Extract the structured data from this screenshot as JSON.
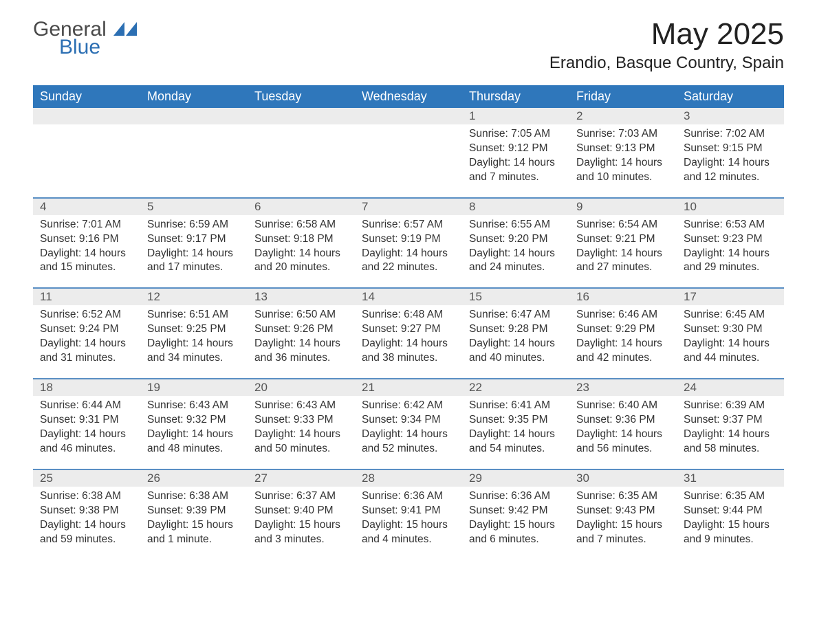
{
  "colors": {
    "header_blue": "#2f77bb",
    "accent_blue": "#2c6fb3",
    "row_header_bg": "#ececec",
    "text": "#333333",
    "title": "#222222",
    "day_number": "#555555",
    "background": "#ffffff",
    "border_blue": "#5a8fc4"
  },
  "typography": {
    "title_fontsize": 44,
    "subtitle_fontsize": 24,
    "weekday_fontsize": 18,
    "daynum_fontsize": 17,
    "body_fontsize": 15.5,
    "font_family": "Segoe UI / Helvetica Neue / Arial"
  },
  "logo": {
    "text_primary": "General",
    "text_secondary": "Blue",
    "mark_color": "#2c6fb3"
  },
  "title": "May 2025",
  "subtitle": "Erandio, Basque Country, Spain",
  "weekdays": [
    "Sunday",
    "Monday",
    "Tuesday",
    "Wednesday",
    "Thursday",
    "Friday",
    "Saturday"
  ],
  "labels": {
    "sunrise": "Sunrise",
    "sunset": "Sunset",
    "daylight": "Daylight"
  },
  "weeks": [
    [
      null,
      null,
      null,
      null,
      {
        "n": "1",
        "sunrise": "7:05 AM",
        "sunset": "9:12 PM",
        "daylight": "14 hours and 7 minutes."
      },
      {
        "n": "2",
        "sunrise": "7:03 AM",
        "sunset": "9:13 PM",
        "daylight": "14 hours and 10 minutes."
      },
      {
        "n": "3",
        "sunrise": "7:02 AM",
        "sunset": "9:15 PM",
        "daylight": "14 hours and 12 minutes."
      }
    ],
    [
      {
        "n": "4",
        "sunrise": "7:01 AM",
        "sunset": "9:16 PM",
        "daylight": "14 hours and 15 minutes."
      },
      {
        "n": "5",
        "sunrise": "6:59 AM",
        "sunset": "9:17 PM",
        "daylight": "14 hours and 17 minutes."
      },
      {
        "n": "6",
        "sunrise": "6:58 AM",
        "sunset": "9:18 PM",
        "daylight": "14 hours and 20 minutes."
      },
      {
        "n": "7",
        "sunrise": "6:57 AM",
        "sunset": "9:19 PM",
        "daylight": "14 hours and 22 minutes."
      },
      {
        "n": "8",
        "sunrise": "6:55 AM",
        "sunset": "9:20 PM",
        "daylight": "14 hours and 24 minutes."
      },
      {
        "n": "9",
        "sunrise": "6:54 AM",
        "sunset": "9:21 PM",
        "daylight": "14 hours and 27 minutes."
      },
      {
        "n": "10",
        "sunrise": "6:53 AM",
        "sunset": "9:23 PM",
        "daylight": "14 hours and 29 minutes."
      }
    ],
    [
      {
        "n": "11",
        "sunrise": "6:52 AM",
        "sunset": "9:24 PM",
        "daylight": "14 hours and 31 minutes."
      },
      {
        "n": "12",
        "sunrise": "6:51 AM",
        "sunset": "9:25 PM",
        "daylight": "14 hours and 34 minutes."
      },
      {
        "n": "13",
        "sunrise": "6:50 AM",
        "sunset": "9:26 PM",
        "daylight": "14 hours and 36 minutes."
      },
      {
        "n": "14",
        "sunrise": "6:48 AM",
        "sunset": "9:27 PM",
        "daylight": "14 hours and 38 minutes."
      },
      {
        "n": "15",
        "sunrise": "6:47 AM",
        "sunset": "9:28 PM",
        "daylight": "14 hours and 40 minutes."
      },
      {
        "n": "16",
        "sunrise": "6:46 AM",
        "sunset": "9:29 PM",
        "daylight": "14 hours and 42 minutes."
      },
      {
        "n": "17",
        "sunrise": "6:45 AM",
        "sunset": "9:30 PM",
        "daylight": "14 hours and 44 minutes."
      }
    ],
    [
      {
        "n": "18",
        "sunrise": "6:44 AM",
        "sunset": "9:31 PM",
        "daylight": "14 hours and 46 minutes."
      },
      {
        "n": "19",
        "sunrise": "6:43 AM",
        "sunset": "9:32 PM",
        "daylight": "14 hours and 48 minutes."
      },
      {
        "n": "20",
        "sunrise": "6:43 AM",
        "sunset": "9:33 PM",
        "daylight": "14 hours and 50 minutes."
      },
      {
        "n": "21",
        "sunrise": "6:42 AM",
        "sunset": "9:34 PM",
        "daylight": "14 hours and 52 minutes."
      },
      {
        "n": "22",
        "sunrise": "6:41 AM",
        "sunset": "9:35 PM",
        "daylight": "14 hours and 54 minutes."
      },
      {
        "n": "23",
        "sunrise": "6:40 AM",
        "sunset": "9:36 PM",
        "daylight": "14 hours and 56 minutes."
      },
      {
        "n": "24",
        "sunrise": "6:39 AM",
        "sunset": "9:37 PM",
        "daylight": "14 hours and 58 minutes."
      }
    ],
    [
      {
        "n": "25",
        "sunrise": "6:38 AM",
        "sunset": "9:38 PM",
        "daylight": "14 hours and 59 minutes."
      },
      {
        "n": "26",
        "sunrise": "6:38 AM",
        "sunset": "9:39 PM",
        "daylight": "15 hours and 1 minute."
      },
      {
        "n": "27",
        "sunrise": "6:37 AM",
        "sunset": "9:40 PM",
        "daylight": "15 hours and 3 minutes."
      },
      {
        "n": "28",
        "sunrise": "6:36 AM",
        "sunset": "9:41 PM",
        "daylight": "15 hours and 4 minutes."
      },
      {
        "n": "29",
        "sunrise": "6:36 AM",
        "sunset": "9:42 PM",
        "daylight": "15 hours and 6 minutes."
      },
      {
        "n": "30",
        "sunrise": "6:35 AM",
        "sunset": "9:43 PM",
        "daylight": "15 hours and 7 minutes."
      },
      {
        "n": "31",
        "sunrise": "6:35 AM",
        "sunset": "9:44 PM",
        "daylight": "15 hours and 9 minutes."
      }
    ]
  ]
}
